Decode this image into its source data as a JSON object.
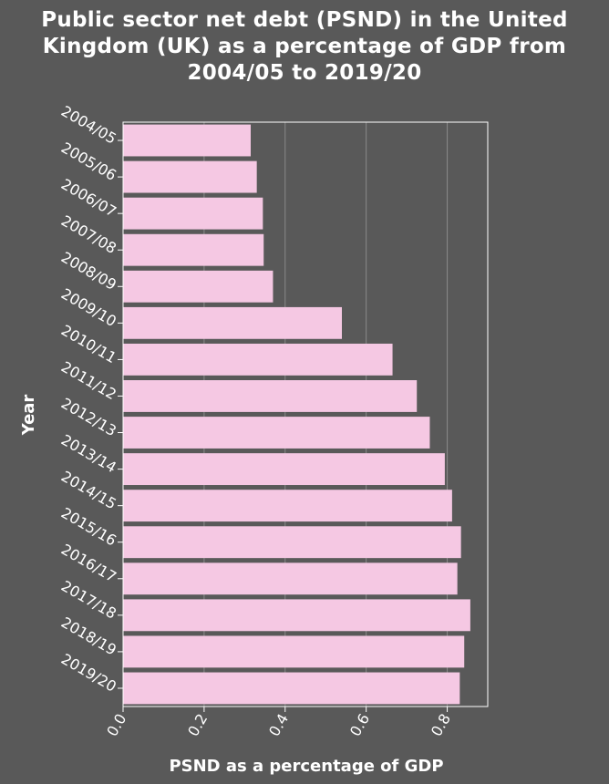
{
  "chart_data": {
    "type": "bar",
    "orientation": "horizontal",
    "title_lines": [
      "Public sector net debt (PSND) in the United",
      "Kingdom (UK) as a percentage of GDP from",
      "2004/05 to 2019/20"
    ],
    "xlabel": "PSND as a percentage of GDP",
    "ylabel": "Year",
    "categories": [
      "2004/05",
      "2005/06",
      "2006/07",
      "2007/08",
      "2008/09",
      "2009/10",
      "2010/11",
      "2011/12",
      "2012/13",
      "2013/14",
      "2014/15",
      "2015/16",
      "2016/17",
      "2017/18",
      "2018/19",
      "2019/20"
    ],
    "values": [
      0.315,
      0.33,
      0.345,
      0.347,
      0.37,
      0.54,
      0.665,
      0.725,
      0.757,
      0.794,
      0.812,
      0.834,
      0.825,
      0.857,
      0.842,
      0.831
    ],
    "xticks": [
      "0.0",
      "0.2",
      "0.4",
      "0.6",
      "0.8"
    ],
    "xtick_values": [
      0.0,
      0.2,
      0.4,
      0.6,
      0.8
    ],
    "xlim": [
      0,
      0.9
    ],
    "grid": true,
    "colors": {
      "bar": "#f5c8e3",
      "background": "#595959",
      "grid": "#8a8a8a",
      "text": "#ffffff"
    }
  }
}
